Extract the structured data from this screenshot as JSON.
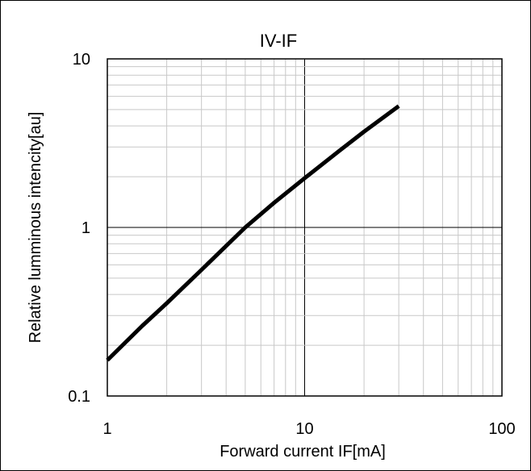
{
  "chart_data": {
    "type": "line",
    "title": "IV-IF",
    "xlabel": "Forward current IF[mA]",
    "ylabel": "Relative lumminous intencity[au]",
    "xscale": "log",
    "yscale": "log",
    "xlim": [
      1,
      100
    ],
    "ylim": [
      0.1,
      10
    ],
    "x_tick_labels": [
      "1",
      "10",
      "100"
    ],
    "y_tick_labels": [
      "0.1",
      "1",
      "10"
    ],
    "grid": true,
    "legend": "none",
    "series": [
      {
        "color": "#000000",
        "x": [
          1,
          1.5,
          2,
          3,
          5,
          7,
          10,
          15,
          20,
          30
        ],
        "y": [
          0.163,
          0.26,
          0.355,
          0.56,
          1.0,
          1.4,
          1.96,
          2.85,
          3.7,
          5.25
        ]
      }
    ]
  }
}
